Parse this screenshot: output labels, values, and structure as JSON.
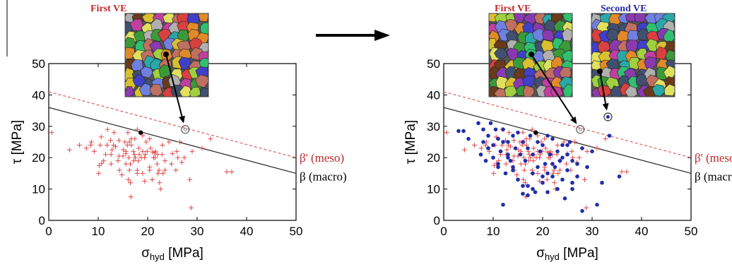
{
  "colors": {
    "first_ve": "#c0282c",
    "second_ve": "#2a2aa8",
    "cross": "#e0474a",
    "dot": "#1f2fa8",
    "meso_line": "#e06a6a",
    "macro_line": "#333333",
    "axis": "#000000"
  },
  "arrow_icon": "right-arrow-icon",
  "chart_data": [
    {
      "type": "scatter",
      "xlabel": "σhyd [MPa]",
      "xlabel_main": "σ",
      "xlabel_sub": "hyd",
      "xlabel_unit": "[MPa]",
      "ylabel": "τ [MPa]",
      "xlim": [
        0,
        50
      ],
      "ylim": [
        0,
        50
      ],
      "xticks": [
        "0",
        "10",
        "20",
        "30",
        "40",
        "50"
      ],
      "yticks": [
        "0",
        "10",
        "20",
        "30",
        "40",
        "50"
      ],
      "grid": false,
      "lines": [
        {
          "name": "β' (meso)",
          "x": [
            0,
            50
          ],
          "y": [
            41,
            20
          ],
          "style": "dashed",
          "color": "#e06a6a"
        },
        {
          "name": "β (macro)",
          "x": [
            0,
            50
          ],
          "y": [
            36,
            15
          ],
          "style": "solid",
          "color": "#333333"
        }
      ],
      "critical_point": {
        "x": 18.6,
        "y": 28
      },
      "highlight_point": {
        "x": 27.6,
        "y": 29
      },
      "insets": [
        {
          "label": "First VE"
        }
      ],
      "series": [
        {
          "marker": "cross",
          "x": [
            0.6,
            4.2,
            6.2,
            7.6,
            8.5,
            8.6,
            9.2,
            10.1,
            10.2,
            10.4,
            10.6,
            10.7,
            11.1,
            11.5,
            11.8,
            11.9,
            12.5,
            12.6,
            12.6,
            12.8,
            13.1,
            13.2,
            13.5,
            14,
            14.2,
            14.2,
            14.3,
            14.8,
            15,
            15.1,
            15.4,
            15.6,
            15.6,
            15.6,
            15.9,
            16,
            16.1,
            16.2,
            16.3,
            16.3,
            16.5,
            16.5,
            16.6,
            16.7,
            16.7,
            17.1,
            17.2,
            17.3,
            17.4,
            17.5,
            17.9,
            17.9,
            17.9,
            18.1,
            18.2,
            18.3,
            18.7,
            19,
            19,
            19,
            19.4,
            19.4,
            19.5,
            19.7,
            19.9,
            20.4,
            20.4,
            20.4,
            20.6,
            20.9,
            21,
            21.2,
            21.4,
            21.5,
            21.6,
            21.9,
            22,
            22.1,
            22.3,
            22.4,
            22.6,
            22.9,
            23,
            23.1,
            23.5,
            23.5,
            24.3,
            24.8,
            25,
            25.7,
            25.9,
            26.1,
            26.5,
            26.9,
            27.4,
            28.5,
            28.8,
            29,
            31,
            32.7,
            36,
            37
          ],
          "y": [
            28,
            22.5,
            24,
            23,
            24,
            25,
            22,
            15,
            17.5,
            24,
            26.6,
            18.2,
            19,
            21,
            24,
            29,
            25.5,
            21,
            18,
            22.5,
            24,
            28,
            23.5,
            19,
            25.5,
            20.5,
            16,
            14.5,
            20.5,
            22.5,
            25,
            21.3,
            18,
            22,
            24,
            28,
            13,
            20,
            16,
            25,
            18,
            12,
            7.5,
            26,
            24,
            22,
            19,
            21,
            26,
            20,
            16,
            15,
            29,
            19,
            23,
            21,
            20,
            27,
            15,
            22,
            20,
            12.5,
            21,
            25,
            22,
            17,
            26,
            16,
            23,
            13,
            21.8,
            20,
            21.5,
            20,
            22,
            18,
            21,
            15,
            16,
            12,
            10,
            21,
            24,
            15,
            19,
            16,
            25,
            18,
            21.3,
            16,
            22,
            20,
            25,
            18.5,
            20,
            13,
            4,
            22,
            23,
            26,
            15.5,
            15.5
          ]
        }
      ]
    },
    {
      "type": "scatter",
      "xlabel": "σhyd [MPa]",
      "xlabel_main": "σ",
      "xlabel_sub": "hyd",
      "xlabel_unit": "[MPa]",
      "ylabel": "τ [MPa]",
      "xlim": [
        0,
        50
      ],
      "ylim": [
        0,
        50
      ],
      "xticks": [
        "0",
        "10",
        "20",
        "30",
        "40",
        "50"
      ],
      "yticks": [
        "0",
        "10",
        "20",
        "30",
        "40",
        "50"
      ],
      "grid": false,
      "lines": [
        {
          "name": "β' (meso)",
          "x": [
            0,
            50
          ],
          "y": [
            41,
            20
          ],
          "style": "dashed",
          "color": "#e06a6a"
        },
        {
          "name": "β (macro)",
          "x": [
            0,
            50
          ],
          "y": [
            36,
            15
          ],
          "style": "solid",
          "color": "#333333"
        }
      ],
      "critical_point": {
        "x": 18.6,
        "y": 28
      },
      "highlight_point": {
        "x": 27.6,
        "y": 29
      },
      "highlight_point_2": {
        "x": 33.2,
        "y": 33
      },
      "insets": [
        {
          "label": "First VE"
        },
        {
          "label": "Second VE"
        }
      ],
      "series": [
        {
          "marker": "cross",
          "x": [
            0.6,
            4.2,
            6.2,
            7.6,
            8.5,
            8.6,
            9.2,
            10.1,
            10.2,
            10.4,
            10.6,
            10.7,
            11.1,
            11.5,
            11.8,
            11.9,
            12.5,
            12.6,
            12.6,
            12.8,
            13.1,
            13.2,
            13.5,
            14,
            14.2,
            14.2,
            14.3,
            14.8,
            15,
            15.1,
            15.4,
            15.6,
            15.6,
            15.6,
            15.9,
            16,
            16.1,
            16.2,
            16.3,
            16.3,
            16.5,
            16.5,
            16.6,
            16.7,
            16.7,
            17.1,
            17.2,
            17.3,
            17.4,
            17.5,
            17.9,
            17.9,
            17.9,
            18.1,
            18.2,
            18.3,
            18.7,
            19,
            19,
            19,
            19.4,
            19.4,
            19.5,
            19.7,
            19.9,
            20.4,
            20.4,
            20.4,
            20.6,
            20.9,
            21,
            21.2,
            21.4,
            21.5,
            21.6,
            21.9,
            22,
            22.1,
            22.3,
            22.4,
            22.6,
            22.9,
            23,
            23.1,
            23.5,
            23.5,
            24.3,
            24.8,
            25,
            25.7,
            25.9,
            26.1,
            26.5,
            26.9,
            27.4,
            28.5,
            28.8,
            29,
            31,
            32.7,
            36,
            37
          ],
          "y": [
            28,
            22.5,
            24,
            23,
            24,
            25,
            22,
            15,
            17.5,
            24,
            26.6,
            18.2,
            19,
            21,
            24,
            29,
            25.5,
            21,
            18,
            22.5,
            24,
            28,
            23.5,
            19,
            25.5,
            20.5,
            16,
            14.5,
            20.5,
            22.5,
            25,
            21.3,
            18,
            22,
            24,
            28,
            13,
            20,
            16,
            25,
            18,
            12,
            7.5,
            26,
            24,
            22,
            19,
            21,
            26,
            20,
            16,
            15,
            29,
            19,
            23,
            21,
            20,
            27,
            15,
            22,
            20,
            12.5,
            21,
            25,
            22,
            17,
            26,
            16,
            23,
            13,
            21.8,
            20,
            21.5,
            20,
            22,
            18,
            21,
            15,
            16,
            12,
            10,
            21,
            24,
            15,
            19,
            16,
            25,
            18,
            21.3,
            16,
            22,
            20,
            25,
            18.5,
            20,
            13,
            4,
            22,
            23,
            26,
            15.5,
            15.5
          ]
        },
        {
          "marker": "dot",
          "x": [
            3,
            4,
            5,
            7,
            7.5,
            8,
            8,
            8.5,
            9,
            9,
            9.5,
            10,
            10,
            10.5,
            11,
            11,
            11.5,
            12,
            12,
            12.5,
            13,
            13,
            13.5,
            14,
            14,
            14.5,
            15,
            15,
            15.5,
            16,
            16,
            16.5,
            17,
            17,
            17.5,
            18,
            18,
            18.5,
            19,
            19,
            19.5,
            20,
            20,
            20.5,
            21,
            21,
            21.5,
            22,
            22,
            22.5,
            23,
            23,
            23.5,
            24,
            24,
            24.5,
            25,
            25,
            25.5,
            26,
            26,
            27,
            27,
            28,
            29,
            30,
            31,
            32,
            33.5,
            35.5,
            16,
            20,
            24,
            13,
            17,
            21,
            25,
            14,
            18,
            22,
            26,
            9,
            11,
            28,
            12
          ],
          "y": [
            28.5,
            28.5,
            26,
            31,
            21,
            25,
            29,
            19,
            27,
            23,
            31,
            24,
            20,
            29,
            26,
            17,
            22,
            25,
            29,
            15,
            21,
            25,
            19,
            27,
            17,
            23,
            13,
            28,
            21,
            25,
            8.5,
            19,
            23,
            11,
            27,
            15,
            21,
            9,
            25,
            17,
            22,
            12,
            24,
            18,
            27,
            9,
            21,
            14,
            26,
            17,
            10,
            22,
            19,
            24,
            13,
            7,
            21,
            16,
            25,
            10,
            19,
            14,
            18,
            23,
            17,
            22,
            5,
            12,
            27,
            14,
            11,
            14,
            20,
            20,
            8,
            15,
            24,
            16,
            10,
            18,
            12,
            23,
            18,
            3,
            5
          ]
        }
      ]
    }
  ],
  "panels": [
    {
      "insets": [
        {
          "label": "First VE"
        }
      ],
      "legend_meso": "β' (meso)",
      "legend_macro": "β (macro)"
    },
    {
      "insets": [
        {
          "label": "First VE"
        },
        {
          "label": "Second VE"
        }
      ],
      "legend_meso": "β' (meso)",
      "legend_macro": "β (macro)"
    }
  ]
}
